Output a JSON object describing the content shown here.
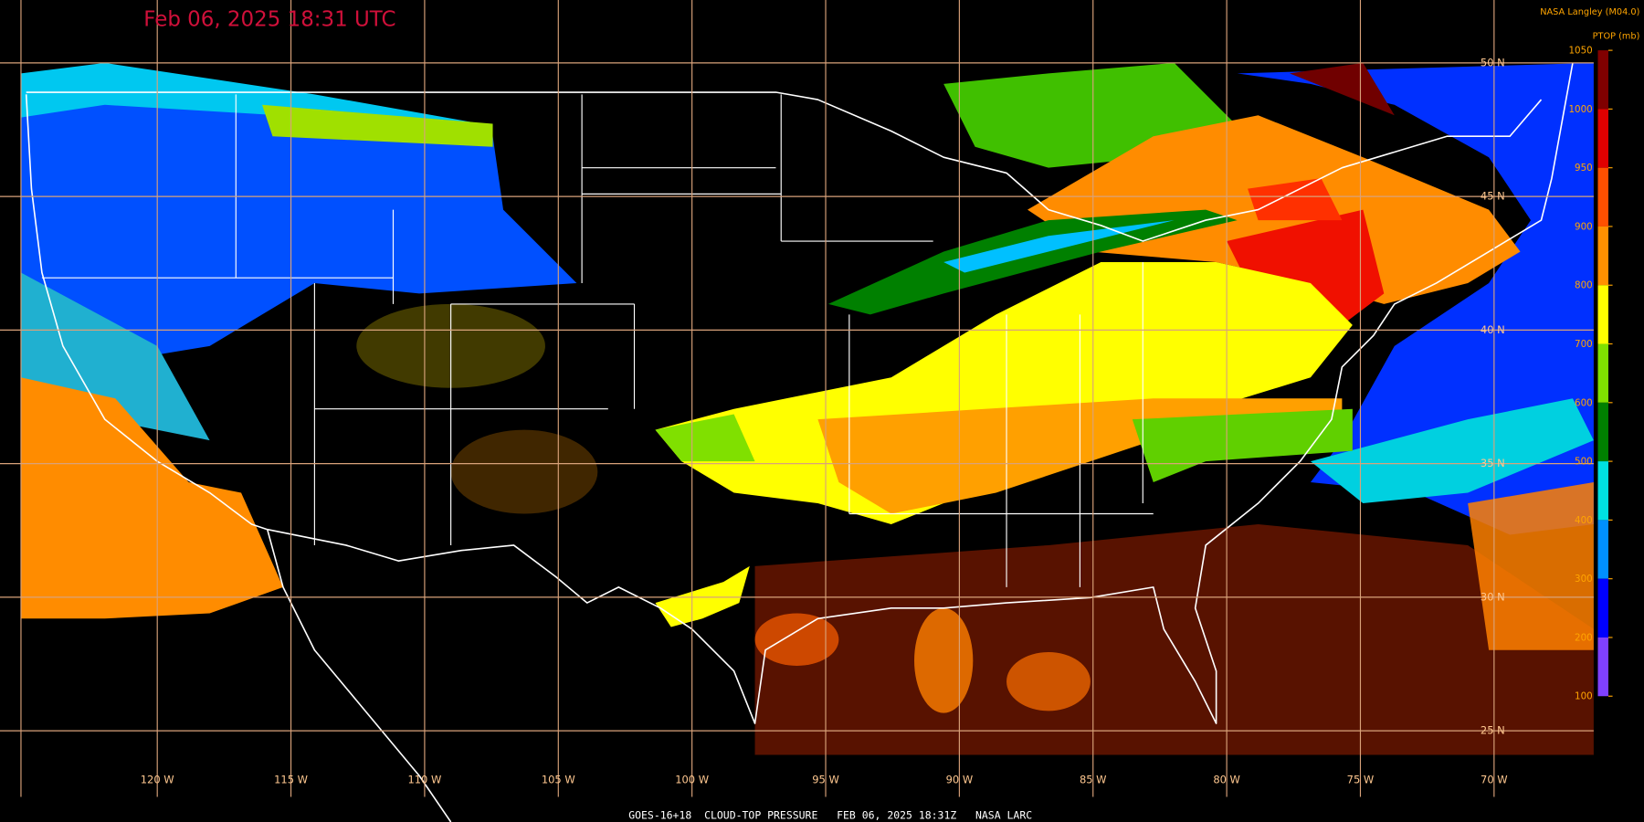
{
  "header": {
    "title": "Feb 06, 2025 18:31 UTC",
    "credit": "NASA Langley (M04.0)"
  },
  "colorbar": {
    "label": "PTOP (mb)",
    "ticks": [
      1050,
      1000,
      950,
      900,
      800,
      700,
      600,
      500,
      400,
      300,
      200,
      100
    ],
    "colors": [
      "#800000",
      "#e00000",
      "#ff5000",
      "#ff9000",
      "#ffff00",
      "#80e000",
      "#008000",
      "#00e0e0",
      "#0090ff",
      "#0000ff",
      "#8040ff"
    ]
  },
  "map": {
    "latitude_labels": [
      "50 N",
      "45 N",
      "40 N",
      "35 N",
      "30 N",
      "25 N"
    ],
    "longitude_labels": [
      "120 W",
      "115 W",
      "110 W",
      "105 W",
      "100 W",
      "95 W",
      "90 W",
      "85 W",
      "80 W",
      "75 W",
      "70 W"
    ]
  },
  "footer": "GOES-16+18  CLOUD-TOP PRESSURE   FEB 06, 2025 18:31Z   NASA LARC"
}
